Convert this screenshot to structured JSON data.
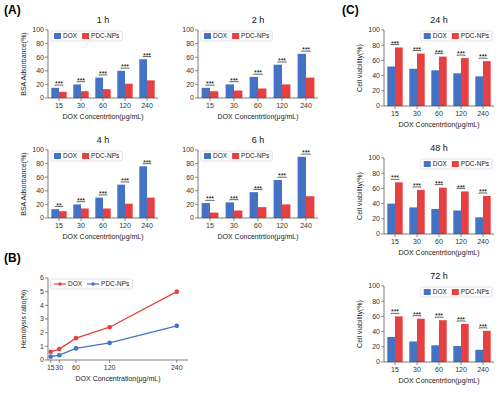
{
  "chart_data": [
    {
      "type": "bar",
      "panel": "(A)",
      "title": "1 h",
      "xlabel": "DOX Concentrtion(μg/mL)",
      "ylabel": "BSA Adsorbance(%)",
      "categories": [
        15,
        30,
        60,
        120,
        240
      ],
      "series": [
        {
          "name": "DOX",
          "color": "#4472C4",
          "values": [
            15,
            20,
            30,
            40,
            57
          ]
        },
        {
          "name": "PDC-NPs",
          "color": "#E84040",
          "values": [
            9,
            10,
            13,
            21,
            26
          ]
        }
      ],
      "ylim": [
        0,
        100
      ],
      "yticks": [
        0,
        20,
        40,
        60,
        80,
        100
      ],
      "annotations": [
        "***",
        "***",
        "***",
        "***",
        "***"
      ],
      "legend": "upper left",
      "grid": false
    },
    {
      "type": "bar",
      "title": "2 h",
      "xlabel": "DOX Concentrtion(μg/mL)",
      "categories": [
        15,
        30,
        60,
        120,
        240
      ],
      "series": [
        {
          "name": "DOX",
          "color": "#4472C4",
          "values": [
            15,
            20,
            31,
            49,
            65
          ]
        },
        {
          "name": "PDC-NPs",
          "color": "#E84040",
          "values": [
            10,
            11,
            14,
            20,
            30
          ]
        }
      ],
      "ylim": [
        0,
        100
      ],
      "yticks": [
        0,
        20,
        40,
        60,
        80,
        100
      ],
      "annotations": [
        "***",
        "***",
        "***",
        "***",
        "***"
      ],
      "legend": "upper left",
      "grid": false
    },
    {
      "type": "bar",
      "title": "4 h",
      "xlabel": "DOX Concentrtion(μg/mL)",
      "ylabel": "BSA Adsorbance(%)",
      "categories": [
        15,
        30,
        60,
        120,
        240
      ],
      "series": [
        {
          "name": "DOX",
          "color": "#4472C4",
          "values": [
            13,
            20,
            30,
            49,
            76
          ]
        },
        {
          "name": "PDC-NPs",
          "color": "#E84040",
          "values": [
            10,
            14,
            14,
            21,
            30
          ]
        }
      ],
      "ylim": [
        0,
        100
      ],
      "yticks": [
        0,
        20,
        40,
        60,
        80,
        100
      ],
      "annotations": [
        "**",
        "***",
        "***",
        "***",
        "***"
      ],
      "legend": "upper left",
      "grid": false
    },
    {
      "type": "bar",
      "title": "6 h",
      "xlabel": "DOX Concentrtion(μg/mL)",
      "categories": [
        15,
        30,
        60,
        120,
        240
      ],
      "series": [
        {
          "name": "DOX",
          "color": "#4472C4",
          "values": [
            22,
            23,
            38,
            56,
            90
          ]
        },
        {
          "name": "PDC-NPs",
          "color": "#E84040",
          "values": [
            8,
            11,
            16,
            20,
            32
          ]
        }
      ],
      "ylim": [
        0,
        100
      ],
      "yticks": [
        0,
        20,
        40,
        60,
        80,
        100
      ],
      "annotations": [
        "***",
        "***",
        "***",
        "***",
        "***"
      ],
      "legend": "upper left",
      "grid": false
    },
    {
      "type": "line",
      "panel": "(B)",
      "xlabel": "DOX Concentration(μg/mL)",
      "ylabel": "Hemolysis ratio(%)",
      "x": [
        15,
        30,
        60,
        120,
        240
      ],
      "series": [
        {
          "name": "DOX",
          "color": "#E84040",
          "marker": "circle",
          "values": [
            0.6,
            0.8,
            1.6,
            2.4,
            5.0
          ]
        },
        {
          "name": "PDC-NPs",
          "color": "#4472C4",
          "marker": "circle",
          "values": [
            0.25,
            0.35,
            0.85,
            1.25,
            2.5
          ]
        }
      ],
      "xlim": [
        10,
        260
      ],
      "xticks": [
        15,
        30,
        60,
        120,
        240
      ],
      "ylim": [
        0,
        6
      ],
      "yticks": [
        0,
        1,
        2,
        3,
        4,
        5,
        6
      ],
      "legend": "upper left",
      "grid": false
    },
    {
      "type": "bar",
      "panel": "(C)",
      "title": "24 h",
      "xlabel": "DOX Concentrtion(μg/mL)",
      "ylabel": "Cell viability(%)",
      "categories": [
        15,
        30,
        60,
        120,
        240
      ],
      "series": [
        {
          "name": "DOX",
          "color": "#4472C4",
          "values": [
            52,
            49,
            47,
            43,
            39
          ]
        },
        {
          "name": "PDC-NPs",
          "color": "#E84040",
          "values": [
            77,
            69,
            65,
            63,
            59
          ]
        }
      ],
      "ylim": [
        0,
        100
      ],
      "yticks": [
        0,
        20,
        40,
        60,
        80,
        100
      ],
      "annotations": [
        "***",
        "***",
        "***",
        "***",
        "***"
      ],
      "legend": "upper right",
      "grid": false
    },
    {
      "type": "bar",
      "title": "48 h",
      "xlabel": "DOX Concentrtion(μg/mL)",
      "ylabel": "Cell viability(%)",
      "categories": [
        15,
        30,
        60,
        120,
        240
      ],
      "series": [
        {
          "name": "DOX",
          "color": "#4472C4",
          "values": [
            40,
            35,
            33,
            31,
            22
          ]
        },
        {
          "name": "PDC-NPs",
          "color": "#E84040",
          "values": [
            68,
            58,
            61,
            56,
            50
          ]
        }
      ],
      "ylim": [
        0,
        100
      ],
      "yticks": [
        0,
        20,
        40,
        60,
        80,
        100
      ],
      "annotations": [
        "***",
        "***",
        "***",
        "***",
        "***"
      ],
      "legend": "upper right",
      "grid": false
    },
    {
      "type": "bar",
      "title": "72 h",
      "xlabel": "DOX Concentrtion(μg/mL)",
      "ylabel": "Cell viability(%)",
      "categories": [
        15,
        30,
        60,
        120,
        240
      ],
      "series": [
        {
          "name": "DOX",
          "color": "#4472C4",
          "values": [
            33,
            27,
            22,
            21,
            16
          ]
        },
        {
          "name": "PDC-NPs",
          "color": "#E84040",
          "values": [
            60,
            57,
            55,
            50,
            41
          ]
        }
      ],
      "ylim": [
        0,
        100
      ],
      "yticks": [
        0,
        20,
        40,
        60,
        80,
        100
      ],
      "annotations": [
        "***",
        "***",
        "***",
        "***",
        "***"
      ],
      "legend": "upper right",
      "grid": false
    }
  ]
}
